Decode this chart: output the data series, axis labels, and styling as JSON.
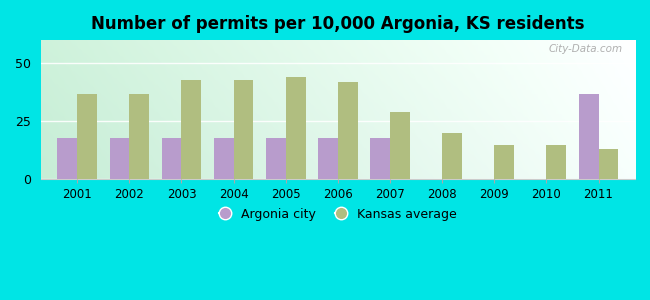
{
  "title": "Number of permits per 10,000 Argonia, KS residents",
  "years": [
    2001,
    2002,
    2003,
    2004,
    2005,
    2006,
    2007,
    2008,
    2009,
    2010,
    2011
  ],
  "argonia_values": [
    18,
    18,
    18,
    18,
    18,
    18,
    18,
    0,
    0,
    0,
    37
  ],
  "kansas_values": [
    37,
    37,
    43,
    43,
    44,
    42,
    29,
    20,
    15,
    15,
    13
  ],
  "argonia_color": "#b89ccc",
  "kansas_color": "#b0be80",
  "outer_bg": "#00e5e5",
  "plot_bg_left": "#c8ecd6",
  "plot_bg_right": "#f0faf8",
  "ylim": [
    0,
    60
  ],
  "yticks": [
    0,
    25,
    50
  ],
  "bar_width": 0.38,
  "legend_argonia": "Argonia city",
  "legend_kansas": "Kansas average",
  "watermark": "City-Data.com"
}
